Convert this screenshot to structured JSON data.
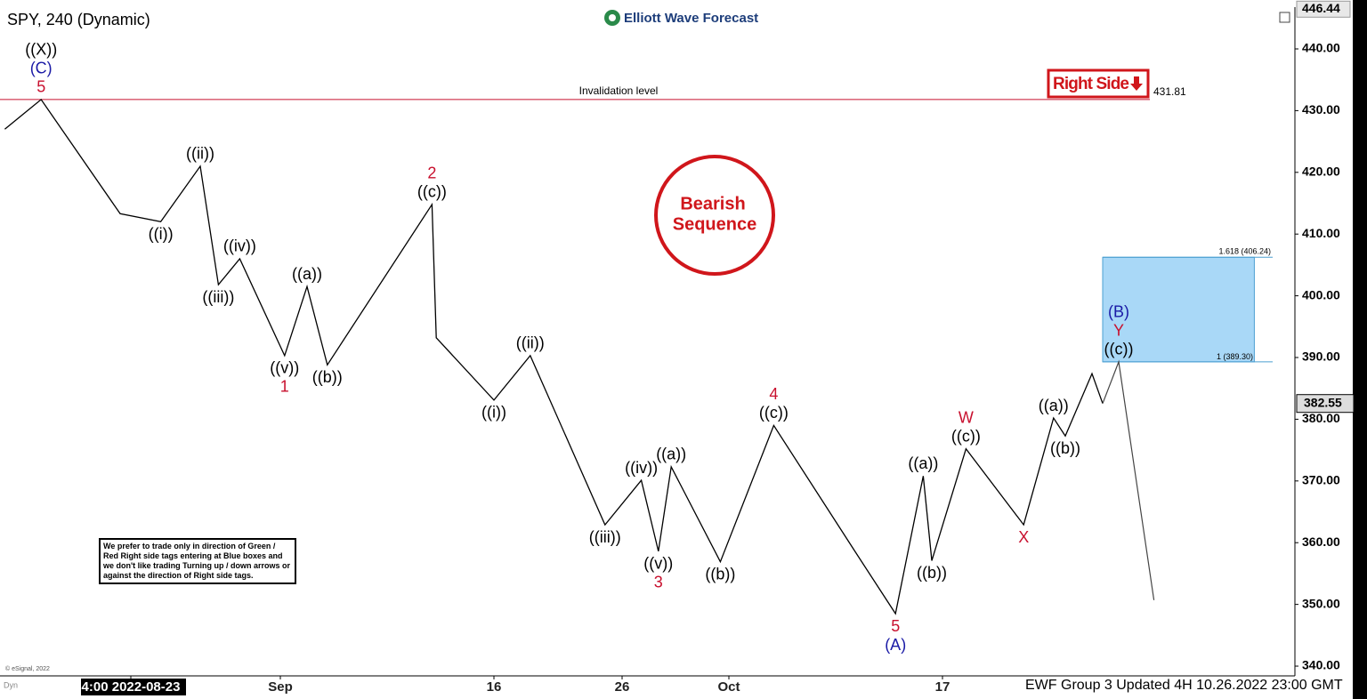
{
  "title": "SPY, 240 (Dynamic)",
  "logo": "Elliott Wave Forecast",
  "note": "We prefer to trade only in direction of Green / Red Right side tags entering at Blue boxes and we don't like trading Turning up / down arrows or against the direction of Right side tags.",
  "copyright": "© eSignal, 2022",
  "corner": "Dyn",
  "footer": "EWF Group 3 Updated 4H 10.26.2022 23:00 GMT",
  "chart_data": {
    "type": "line",
    "x": [
      -5.9,
      -4.2,
      -0.5,
      1.4,
      3.25,
      4.1,
      5.1,
      7.2,
      8.25,
      9.2,
      14.1,
      14.3,
      17,
      18.7,
      22.2,
      23.9,
      24.7,
      25.3,
      27.6,
      30.1,
      33.9,
      35.8,
      37.1,
      37.5,
      39.1,
      41.8,
      43.2,
      43.75,
      45,
      45.5
    ],
    "series": [
      {
        "color": "#000000",
        "values": [
          427,
          431.8,
          413.3,
          412,
          421,
          401.8,
          406,
          390.3,
          401.5,
          388.8,
          414.8,
          393.2,
          383.1,
          390.3,
          362.9,
          370.1,
          358.6,
          372.3,
          356.9,
          379,
          358.6,
          348.5,
          370.8,
          357.1,
          375.2,
          362.9,
          380.2,
          377.3,
          387.4,
          382.55
        ],
        "wave_labels": [
          null,
          [
            {
              "text": "((X))",
              "color": "#000000"
            },
            {
              "text": "(C)",
              "color": "#1a1aa6"
            },
            {
              "text": "5",
              "color": "#c8102e"
            }
          ],
          null,
          [
            {
              "text": "((i))",
              "color": "#000000"
            }
          ],
          [
            {
              "text": "((ii))",
              "color": "#000000"
            }
          ],
          [
            {
              "text": "((iii))",
              "color": "#000000"
            }
          ],
          [
            {
              "text": "((iv))",
              "color": "#000000"
            }
          ],
          [
            {
              "text": "((v))",
              "color": "#000000"
            },
            {
              "text": "1",
              "color": "#c8102e"
            }
          ],
          [
            {
              "text": "((a))",
              "color": "#000000"
            }
          ],
          [
            {
              "text": "((b))",
              "color": "#000000"
            }
          ],
          [
            {
              "text": "2",
              "color": "#c8102e"
            },
            {
              "text": "((c))",
              "color": "#000000"
            }
          ],
          null,
          [
            {
              "text": "((i))",
              "color": "#000000"
            }
          ],
          [
            {
              "text": "((ii))",
              "color": "#000000"
            }
          ],
          [
            {
              "text": "((iii))",
              "color": "#000000"
            }
          ],
          [
            {
              "text": "((iv))",
              "color": "#000000"
            }
          ],
          [
            {
              "text": "((v))",
              "color": "#000000"
            },
            {
              "text": "3",
              "color": "#c8102e"
            }
          ],
          [
            {
              "text": "((a))",
              "color": "#000000"
            }
          ],
          [
            {
              "text": "((b))",
              "color": "#000000"
            }
          ],
          [
            {
              "text": "4",
              "color": "#c8102e"
            },
            {
              "text": "((c))",
              "color": "#000000"
            }
          ],
          null,
          [
            {
              "text": "5",
              "color": "#c8102e"
            },
            {
              "text": "(A)",
              "color": "#1a1aa6"
            }
          ],
          [
            {
              "text": "((a))",
              "color": "#000000"
            }
          ],
          [
            {
              "text": "((b))",
              "color": "#000000"
            }
          ],
          [
            {
              "text": "W",
              "color": "#c8102e"
            },
            {
              "text": "((c))",
              "color": "#000000"
            }
          ],
          [
            {
              "text": "X",
              "color": "#c8102e"
            }
          ],
          [
            {
              "text": "((a))",
              "color": "#000000"
            }
          ],
          [
            {
              "text": "((b))",
              "color": "#000000"
            }
          ],
          null,
          null
        ]
      }
    ],
    "projection": {
      "color": "#444444",
      "x": [
        45.5,
        46.25,
        47.9
      ],
      "values": [
        382.55,
        389.3,
        350.7
      ],
      "wave_labels": [
        null,
        [
          {
            "text": "(B)",
            "color": "#1a1aa6"
          },
          {
            "text": "Y",
            "color": "#c8102e"
          },
          {
            "text": "((c))",
            "color": "#000000"
          }
        ],
        null
      ]
    },
    "xlim": [
      -6.125,
      54.5
    ],
    "xticks": [
      {
        "value": 0,
        "label": "4:00 2022-08-23"
      },
      {
        "value": 7,
        "label": "Sep"
      },
      {
        "value": 17,
        "label": "16"
      },
      {
        "value": 23,
        "label": "26"
      },
      {
        "value": 28,
        "label": "Oct"
      },
      {
        "value": 38,
        "label": "17"
      }
    ],
    "ylim": [
      338.42,
      446.77
    ],
    "yticks": [
      {
        "value": 340,
        "label": "340.00"
      },
      {
        "value": 350,
        "label": "350.00"
      },
      {
        "value": 360,
        "label": "360.00"
      },
      {
        "value": 370,
        "label": "370.00"
      },
      {
        "value": 380,
        "label": "380.00"
      },
      {
        "value": 390,
        "label": "390.00"
      },
      {
        "value": 400,
        "label": "400.00"
      },
      {
        "value": 410,
        "label": "410.00"
      },
      {
        "value": 420,
        "label": "420.00"
      },
      {
        "value": 430,
        "label": "430.00"
      },
      {
        "value": 440,
        "label": "440.00"
      }
    ],
    "top_price": 446.44,
    "last_price": 382.55,
    "invalidation": {
      "label": "Invalidation level",
      "value": 431.81
    },
    "right_side_tag": "Right Side",
    "stamp": [
      "Bearish",
      "Sequence"
    ],
    "target_box": {
      "x": [
        45.5,
        52.6
      ],
      "low": 389.3,
      "high": 406.24,
      "low_label": "1 (389.30)",
      "high_label": "1.618 (406.24)"
    }
  }
}
